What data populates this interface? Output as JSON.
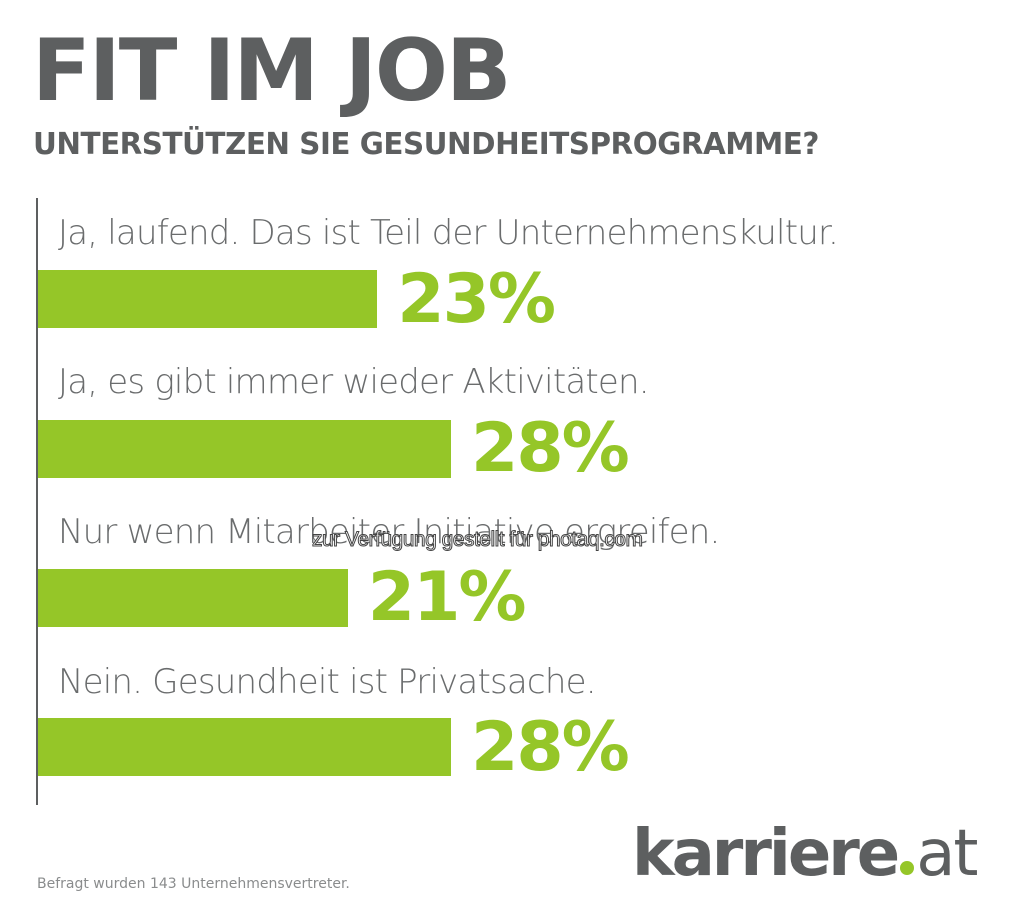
{
  "header": {
    "title": "FIT IM JOB",
    "subtitle": "UNTERSTÜTZEN SIE GESUNDHEITSPROGRAMME?"
  },
  "chart_data": {
    "type": "bar",
    "orientation": "horizontal",
    "title": "FIT IM JOB",
    "subtitle": "UNTERSTÜTZEN SIE GESUNDHEITSPROGRAMME?",
    "categories": [
      "Ja, laufend. Das ist Teil der Unternehmenskultur.",
      "Ja, es gibt immer wieder Aktivitäten.",
      "Nur wenn Mitarbeiter Initiative ergreifen.",
      "Nein. Gesundheit ist Privatsache."
    ],
    "values": [
      23,
      28,
      21,
      28
    ],
    "value_labels": [
      "23%",
      "28%",
      "21%",
      "28%"
    ],
    "unit": "%",
    "xlabel": "",
    "ylabel": "",
    "xlim": [
      0,
      100
    ],
    "grid": false,
    "legend": "none",
    "bar_color": "#95c628"
  },
  "watermark": "zur Verfügung gestellt für photaq.com",
  "footnote": "Befragt wurden 143 Unternehmensvertreter.",
  "logo": {
    "name": "karriere",
    "tld": "at",
    "accent_color": "#95c628",
    "text_color": "#5d5f60"
  }
}
